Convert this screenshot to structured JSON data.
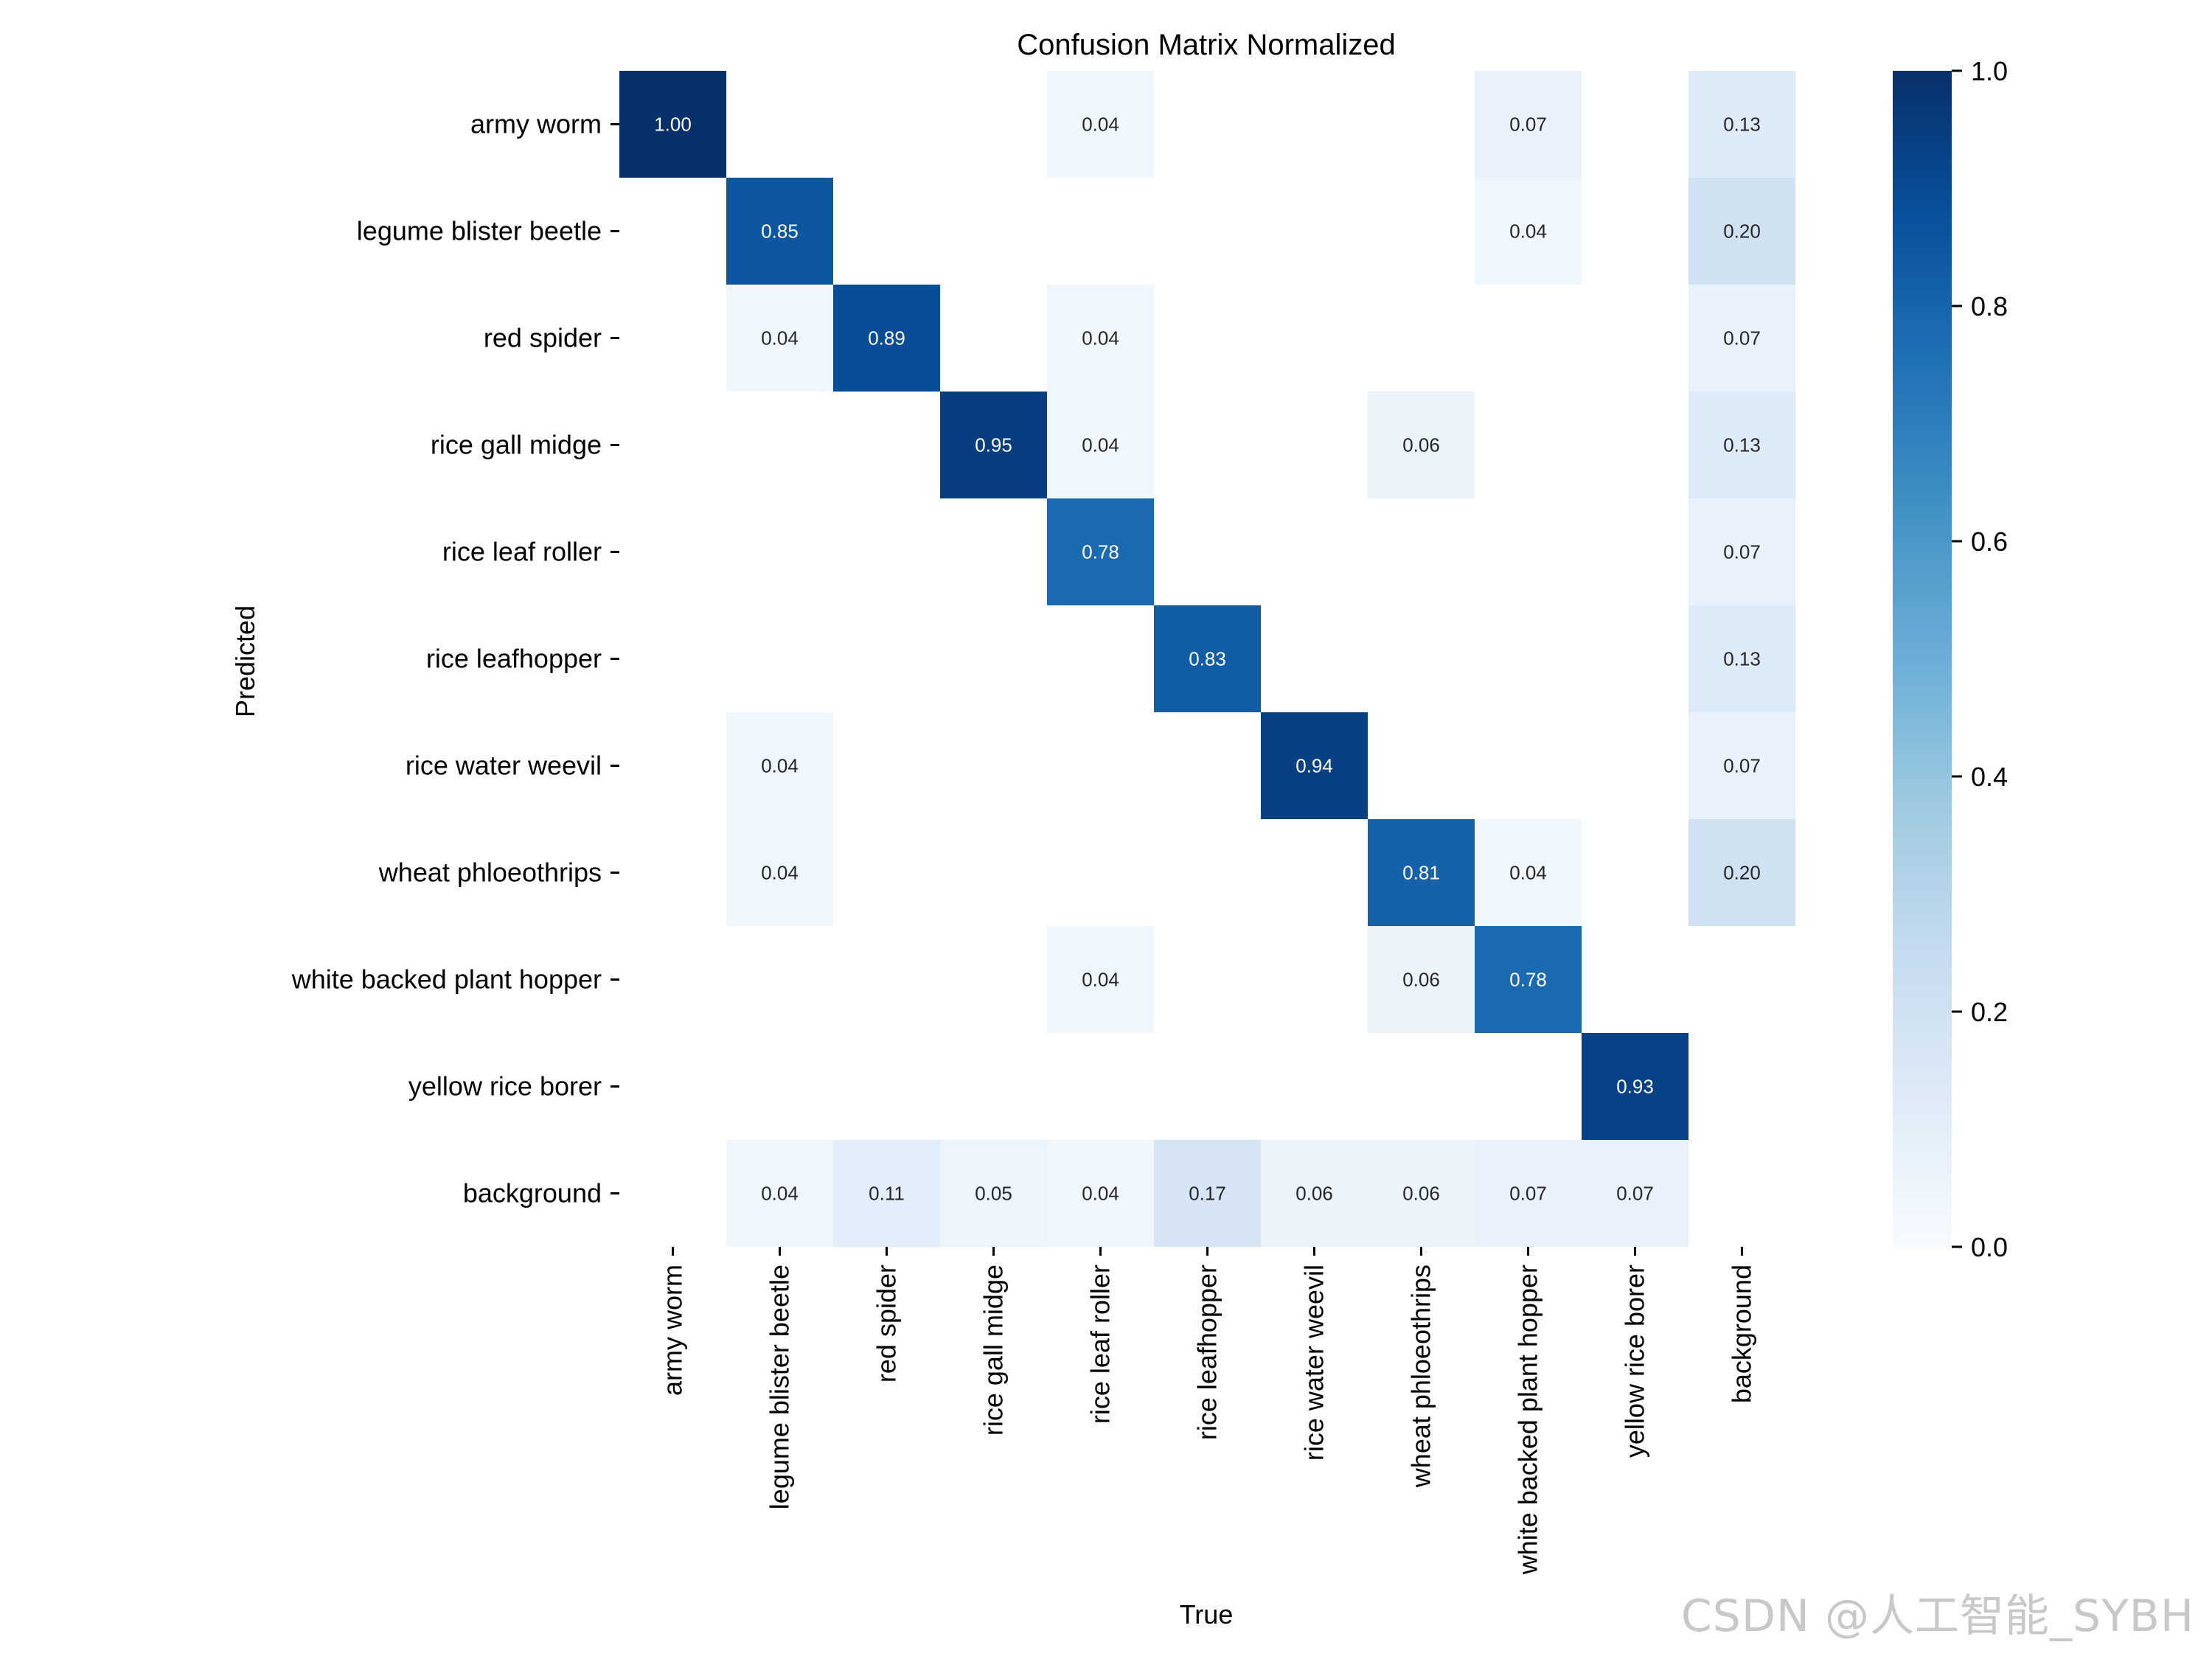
{
  "chart_data": {
    "type": "heatmap",
    "title": "Confusion Matrix Normalized",
    "xlabel": "True",
    "ylabel": "Predicted",
    "categories": [
      "army worm",
      "legume blister beetle",
      "red spider",
      "rice gall midge",
      "rice leaf roller",
      "rice leafhopper",
      "rice water weevil",
      "wheat phloeothrips",
      "white backed plant hopper",
      "yellow rice borer",
      "background"
    ],
    "matrix": [
      [
        1.0,
        null,
        null,
        null,
        0.04,
        null,
        null,
        null,
        0.07,
        null,
        0.13
      ],
      [
        null,
        0.85,
        null,
        null,
        null,
        null,
        null,
        null,
        0.04,
        null,
        0.2
      ],
      [
        null,
        0.04,
        0.89,
        null,
        0.04,
        null,
        null,
        null,
        null,
        null,
        0.07
      ],
      [
        null,
        null,
        null,
        0.95,
        0.04,
        null,
        null,
        0.06,
        null,
        null,
        0.13
      ],
      [
        null,
        null,
        null,
        null,
        0.78,
        null,
        null,
        null,
        null,
        null,
        0.07
      ],
      [
        null,
        null,
        null,
        null,
        null,
        0.83,
        null,
        null,
        null,
        null,
        0.13
      ],
      [
        null,
        0.04,
        null,
        null,
        null,
        null,
        0.94,
        null,
        null,
        null,
        0.07
      ],
      [
        null,
        0.04,
        null,
        null,
        null,
        null,
        null,
        0.81,
        0.04,
        null,
        0.2
      ],
      [
        null,
        null,
        null,
        null,
        0.04,
        null,
        null,
        0.06,
        0.78,
        null,
        null
      ],
      [
        null,
        null,
        null,
        null,
        null,
        null,
        null,
        null,
        null,
        0.93,
        null
      ],
      [
        null,
        0.04,
        0.11,
        0.05,
        0.04,
        0.17,
        0.06,
        0.06,
        0.07,
        0.07,
        null
      ]
    ],
    "colorbar": {
      "min": 0.0,
      "max": 1.0,
      "ticks": [
        "0.0",
        "0.2",
        "0.4",
        "0.6",
        "0.8",
        "1.0"
      ],
      "colormap": "Blues"
    }
  },
  "colors": {
    "low": "#f7fbff",
    "high": "#08306b",
    "text_dark": "#262626",
    "text_light": "#ffffff"
  },
  "watermark": "CSDN @人工智能_SYBH"
}
